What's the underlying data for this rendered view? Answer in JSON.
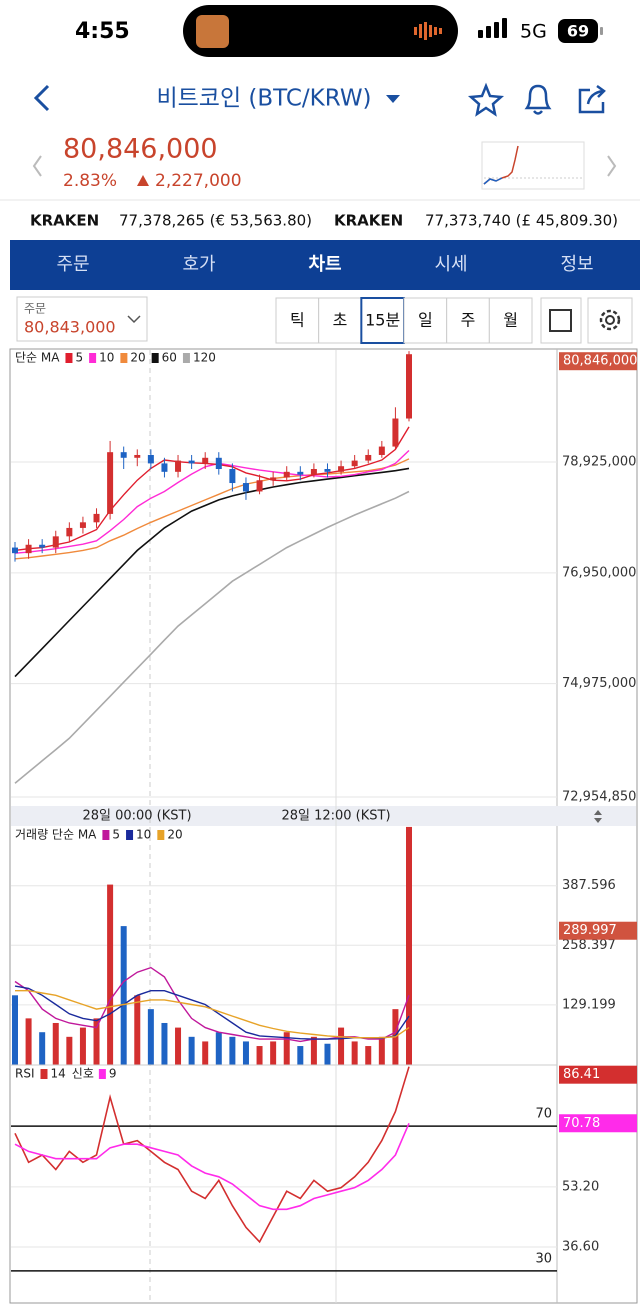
{
  "status_bar": {
    "time": "4:55",
    "network": "5G",
    "battery": "69"
  },
  "header": {
    "title": "비트코인 (BTC/KRW)"
  },
  "price": {
    "current": "80,846,000",
    "change_pct": "2.83%",
    "change": "2,227,000"
  },
  "exchanges": [
    {
      "name": "KRAKEN",
      "value": "77,378,265 (€ 53,563.80)"
    },
    {
      "name": "KRAKEN",
      "value": "77,373,740 (£ 45,809.30)"
    }
  ],
  "tabs": {
    "items": [
      "주문",
      "호가",
      "차트",
      "시세",
      "정보"
    ],
    "active": 2
  },
  "controls": {
    "order_label": "주문",
    "order_price": "80,843,000",
    "intervals": [
      "틱",
      "초",
      "15분",
      "일",
      "주",
      "월"
    ],
    "selected": 2
  },
  "chart_data": [
    {
      "type": "candlestick",
      "legend_title": "단순 MA",
      "up_color": "#d32f2f",
      "down_color": "#1e63c4",
      "xtick_labels": [
        "28일 00:00 (KST)",
        "28일 12:00 (KST)"
      ],
      "ylim": [
        72812000,
        80921000
      ],
      "yticks": [
        {
          "value": 78925000,
          "label": "78,925,000"
        },
        {
          "value": 76950000,
          "label": "76,950,000"
        },
        {
          "value": 74975000,
          "label": "74,975,000"
        },
        {
          "value": 72954850,
          "label": "72,954,850"
        }
      ],
      "marker": {
        "value": 80846000,
        "label": "80,846,000"
      },
      "marker_color": "#d0533f",
      "open": [
        77400000,
        77300000,
        77450000,
        77400000,
        77600000,
        77750000,
        77850000,
        78000000,
        79100000,
        79000000,
        79050000,
        78900000,
        78750000,
        78950000,
        78900000,
        79000000,
        78800000,
        78550000,
        78400000,
        78600000,
        78650000,
        78750000,
        78700000,
        78800000,
        78750000,
        78850000,
        78950000,
        79050000,
        79200000,
        79700000
      ],
      "high": [
        77500000,
        77550000,
        77550000,
        77700000,
        77850000,
        77950000,
        78100000,
        79300000,
        79200000,
        79150000,
        79150000,
        79000000,
        79050000,
        79050000,
        79100000,
        79100000,
        78900000,
        78650000,
        78700000,
        78750000,
        78850000,
        78850000,
        78900000,
        78900000,
        78950000,
        79050000,
        79150000,
        79300000,
        79900000,
        80900000
      ],
      "low": [
        77150000,
        77200000,
        77300000,
        77300000,
        77500000,
        77650000,
        77750000,
        77900000,
        78800000,
        78850000,
        78800000,
        78650000,
        78650000,
        78800000,
        78800000,
        78700000,
        78400000,
        78250000,
        78350000,
        78500000,
        78600000,
        78600000,
        78650000,
        78650000,
        78700000,
        78800000,
        78900000,
        79000000,
        79150000,
        79650000
      ],
      "close": [
        77300000,
        77450000,
        77400000,
        77600000,
        77750000,
        77850000,
        78000000,
        79100000,
        79000000,
        79050000,
        78900000,
        78750000,
        78950000,
        78900000,
        79000000,
        78800000,
        78550000,
        78400000,
        78600000,
        78650000,
        78750000,
        78700000,
        78800000,
        78750000,
        78850000,
        78950000,
        79050000,
        79200000,
        79700000,
        80846000
      ],
      "series": [
        {
          "name": "5",
          "color": "#e01e2e",
          "values": [
            77350000,
            77380000,
            77400000,
            77450000,
            77500000,
            77610000,
            77720000,
            78060000,
            78340000,
            78600000,
            78810000,
            78960000,
            78930000,
            78910000,
            78900000,
            78880000,
            78840000,
            78730000,
            78670000,
            78600000,
            78590000,
            78620000,
            78700000,
            78730000,
            78770000,
            78810000,
            78880000,
            78960000,
            79150000,
            79550000
          ]
        },
        {
          "name": "10",
          "color": "#ff2bd6",
          "values": [
            77300000,
            77320000,
            77350000,
            77380000,
            77420000,
            77460000,
            77520000,
            77700000,
            77900000,
            78130000,
            78280000,
            78400000,
            78560000,
            78710000,
            78840000,
            78900000,
            78860000,
            78820000,
            78780000,
            78750000,
            78720000,
            78690000,
            78680000,
            78660000,
            78670000,
            78700000,
            78750000,
            78790000,
            78900000,
            79130000
          ]
        },
        {
          "name": "20",
          "color": "#f08a3c",
          "values": [
            77200000,
            77220000,
            77250000,
            77280000,
            77310000,
            77350000,
            77400000,
            77520000,
            77620000,
            77740000,
            77850000,
            77950000,
            78050000,
            78150000,
            78250000,
            78350000,
            78450000,
            78530000,
            78580000,
            78630000,
            78660000,
            78680000,
            78700000,
            78710000,
            78730000,
            78750000,
            78770000,
            78810000,
            78870000,
            78980000
          ]
        },
        {
          "name": "60",
          "color": "#111111",
          "values": [
            75100000,
            75350000,
            75600000,
            75850000,
            76100000,
            76350000,
            76600000,
            76850000,
            77100000,
            77350000,
            77550000,
            77750000,
            77900000,
            78050000,
            78150000,
            78250000,
            78320000,
            78380000,
            78430000,
            78480000,
            78520000,
            78560000,
            78590000,
            78620000,
            78650000,
            78680000,
            78710000,
            78740000,
            78770000,
            78810000
          ]
        },
        {
          "name": "120",
          "color": "#aaaaaa",
          "values": [
            73200000,
            73400000,
            73600000,
            73800000,
            74000000,
            74250000,
            74500000,
            74750000,
            75000000,
            75250000,
            75500000,
            75750000,
            76000000,
            76200000,
            76400000,
            76600000,
            76800000,
            76950000,
            77100000,
            77250000,
            77400000,
            77520000,
            77640000,
            77760000,
            77870000,
            77980000,
            78080000,
            78180000,
            78280000,
            78400000
          ]
        }
      ]
    },
    {
      "type": "bar",
      "legend_title": "거래량 단순 MA",
      "ylim": [
        0,
        517
      ],
      "yticks": [
        {
          "value": 387.596,
          "label": "387.596"
        },
        {
          "value": 258.397,
          "label": "258.397"
        },
        {
          "value": 129.199,
          "label": "129.199"
        }
      ],
      "marker": 289.997,
      "marker_color": "#d0533f",
      "values": [
        150,
        100,
        70,
        90,
        60,
        80,
        100,
        390,
        300,
        150,
        120,
        90,
        80,
        60,
        50,
        70,
        60,
        50,
        40,
        50,
        70,
        40,
        60,
        45,
        80,
        50,
        40,
        60,
        120,
        515
      ],
      "series": [
        {
          "name": "5",
          "color": "#c0189b",
          "values": [
            180,
            160,
            120,
            100,
            90,
            85,
            80,
            140,
            180,
            200,
            210,
            190,
            140,
            100,
            80,
            70,
            65,
            60,
            55,
            55,
            55,
            50,
            55,
            55,
            60,
            60,
            55,
            55,
            70,
            150
          ]
        },
        {
          "name": "10",
          "color": "#1a2a9c",
          "values": [
            170,
            165,
            150,
            130,
            110,
            100,
            95,
            110,
            130,
            150,
            160,
            160,
            150,
            140,
            130,
            110,
            90,
            70,
            62,
            60,
            58,
            56,
            55,
            55,
            56,
            58,
            58,
            57,
            62,
            105
          ]
        },
        {
          "name": "20",
          "color": "#e7a328",
          "values": [
            160,
            160,
            155,
            150,
            140,
            130,
            120,
            125,
            130,
            135,
            140,
            140,
            135,
            130,
            125,
            115,
            105,
            95,
            85,
            78,
            72,
            68,
            65,
            62,
            60,
            58,
            58,
            58,
            60,
            80
          ]
        }
      ]
    },
    {
      "type": "line",
      "legend_title": "RSI",
      "signal_label": "신호",
      "ylim": [
        21.4,
        86.6
      ],
      "yticks": [
        {
          "value": 53.2,
          "label": "53.20"
        },
        {
          "value": 36.6,
          "label": "36.60"
        }
      ],
      "levels": [
        70,
        30
      ],
      "markers": [
        86.41,
        70.78
      ],
      "series": [
        {
          "name": "14",
          "color": "#d32f2f",
          "values": [
            68,
            60,
            62,
            58,
            63,
            60,
            62,
            78,
            65,
            66,
            63,
            60,
            58,
            52,
            50,
            55,
            48,
            42,
            38,
            45,
            52,
            50,
            55,
            52,
            53,
            56,
            60,
            66,
            74,
            86.41
          ]
        },
        {
          "name": "9",
          "color": "#ff2bea",
          "values": [
            65,
            63,
            62,
            61,
            61,
            61,
            61,
            64,
            65,
            65,
            64,
            63,
            62,
            59,
            57,
            56,
            54,
            51,
            48,
            47,
            47,
            48,
            50,
            51,
            52,
            53,
            55,
            58,
            62,
            70.78
          ]
        }
      ]
    }
  ]
}
